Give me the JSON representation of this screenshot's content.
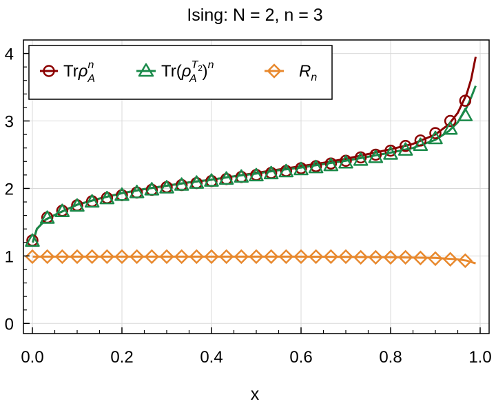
{
  "chart_data": {
    "type": "line",
    "title": "Ising: N = 2, n = 3",
    "xlabel": "x",
    "ylabel": "",
    "xlim": [
      -0.02,
      1.02
    ],
    "ylim": [
      -0.15,
      4.2
    ],
    "xticks": [
      0.0,
      0.2,
      0.4,
      0.6,
      0.8,
      1.0
    ],
    "xtick_labels": [
      "0.0",
      "0.2",
      "0.4",
      "0.6",
      "0.8",
      "1.0"
    ],
    "yticks": [
      0,
      1,
      2,
      3,
      4
    ],
    "ytick_labels": [
      "0",
      "1",
      "2",
      "3",
      "4"
    ],
    "grid": true,
    "legend_position": "top-left",
    "series": [
      {
        "name": "Trρ_A^n",
        "color": "#8b0000",
        "marker": "circle",
        "curve": {
          "x": [
            0.001,
            0.01,
            0.03,
            0.06,
            0.1,
            0.15,
            0.2,
            0.25,
            0.3,
            0.35,
            0.4,
            0.45,
            0.5,
            0.55,
            0.6,
            0.65,
            0.7,
            0.75,
            0.8,
            0.85,
            0.9,
            0.93,
            0.95,
            0.97,
            0.98,
            0.99
          ],
          "y": [
            1.2,
            1.4,
            1.54,
            1.64,
            1.76,
            1.85,
            1.93,
            1.99,
            2.04,
            2.09,
            2.13,
            2.18,
            2.23,
            2.28,
            2.33,
            2.38,
            2.44,
            2.51,
            2.58,
            2.66,
            2.8,
            2.95,
            3.12,
            3.4,
            3.62,
            3.95
          ]
        },
        "markers": {
          "x": [
            0.0,
            0.0333,
            0.0667,
            0.1,
            0.1333,
            0.1667,
            0.2,
            0.2333,
            0.2667,
            0.3,
            0.3333,
            0.3667,
            0.4,
            0.4333,
            0.4667,
            0.5,
            0.5333,
            0.5667,
            0.6,
            0.6333,
            0.6667,
            0.7,
            0.7333,
            0.7667,
            0.8,
            0.8333,
            0.8667,
            0.9,
            0.9333,
            0.9667
          ],
          "y": [
            1.23,
            1.57,
            1.67,
            1.75,
            1.81,
            1.86,
            1.9,
            1.94,
            1.98,
            2.02,
            2.05,
            2.08,
            2.11,
            2.14,
            2.17,
            2.2,
            2.23,
            2.26,
            2.3,
            2.33,
            2.37,
            2.41,
            2.46,
            2.5,
            2.56,
            2.63,
            2.71,
            2.82,
            3.0,
            3.3
          ]
        }
      },
      {
        "name": "Tr(ρ_A^T2)^n",
        "color": "#1a8a4a",
        "marker": "triangle",
        "curve": {
          "x": [
            0.001,
            0.01,
            0.03,
            0.06,
            0.1,
            0.15,
            0.2,
            0.25,
            0.3,
            0.35,
            0.4,
            0.45,
            0.5,
            0.55,
            0.6,
            0.65,
            0.7,
            0.75,
            0.8,
            0.85,
            0.9,
            0.93,
            0.95,
            0.97,
            0.98,
            0.99
          ],
          "y": [
            1.2,
            1.4,
            1.54,
            1.64,
            1.76,
            1.85,
            1.93,
            1.99,
            2.04,
            2.09,
            2.13,
            2.18,
            2.22,
            2.27,
            2.31,
            2.36,
            2.41,
            2.47,
            2.53,
            2.6,
            2.72,
            2.85,
            2.98,
            3.2,
            3.35,
            3.52
          ]
        },
        "markers": {
          "x": [
            0.0,
            0.0333,
            0.0667,
            0.1,
            0.1333,
            0.1667,
            0.2,
            0.2333,
            0.2667,
            0.3,
            0.3333,
            0.3667,
            0.4,
            0.4333,
            0.4667,
            0.5,
            0.5333,
            0.5667,
            0.6,
            0.6333,
            0.6667,
            0.7,
            0.7333,
            0.7667,
            0.8,
            0.8333,
            0.8667,
            0.9,
            0.9333,
            0.9667
          ],
          "y": [
            1.22,
            1.56,
            1.66,
            1.74,
            1.8,
            1.85,
            1.9,
            1.94,
            1.98,
            2.01,
            2.05,
            2.08,
            2.11,
            2.14,
            2.17,
            2.19,
            2.22,
            2.25,
            2.28,
            2.31,
            2.34,
            2.38,
            2.42,
            2.46,
            2.51,
            2.57,
            2.64,
            2.74,
            2.88,
            3.08
          ]
        }
      },
      {
        "name": "R_n",
        "color": "#e8892e",
        "marker": "diamond",
        "curve": {
          "x": [
            0.001,
            0.2,
            0.4,
            0.6,
            0.8,
            0.9,
            0.95,
            0.97,
            0.99
          ],
          "y": [
            0.99,
            0.99,
            0.99,
            0.99,
            0.98,
            0.97,
            0.95,
            0.93,
            0.89
          ]
        },
        "markers": {
          "x": [
            0.0,
            0.0333,
            0.0667,
            0.1,
            0.1333,
            0.1667,
            0.2,
            0.2333,
            0.2667,
            0.3,
            0.3333,
            0.3667,
            0.4,
            0.4333,
            0.4667,
            0.5,
            0.5333,
            0.5667,
            0.6,
            0.6333,
            0.6667,
            0.7,
            0.7333,
            0.7667,
            0.8,
            0.8333,
            0.8667,
            0.9,
            0.9333,
            0.9667
          ],
          "y": [
            0.99,
            0.99,
            0.99,
            0.99,
            0.99,
            0.99,
            0.99,
            0.99,
            0.99,
            0.99,
            0.99,
            0.99,
            0.99,
            0.99,
            0.99,
            0.99,
            0.99,
            0.99,
            0.99,
            0.99,
            0.99,
            0.99,
            0.98,
            0.98,
            0.98,
            0.98,
            0.97,
            0.96,
            0.95,
            0.93
          ]
        }
      }
    ]
  }
}
